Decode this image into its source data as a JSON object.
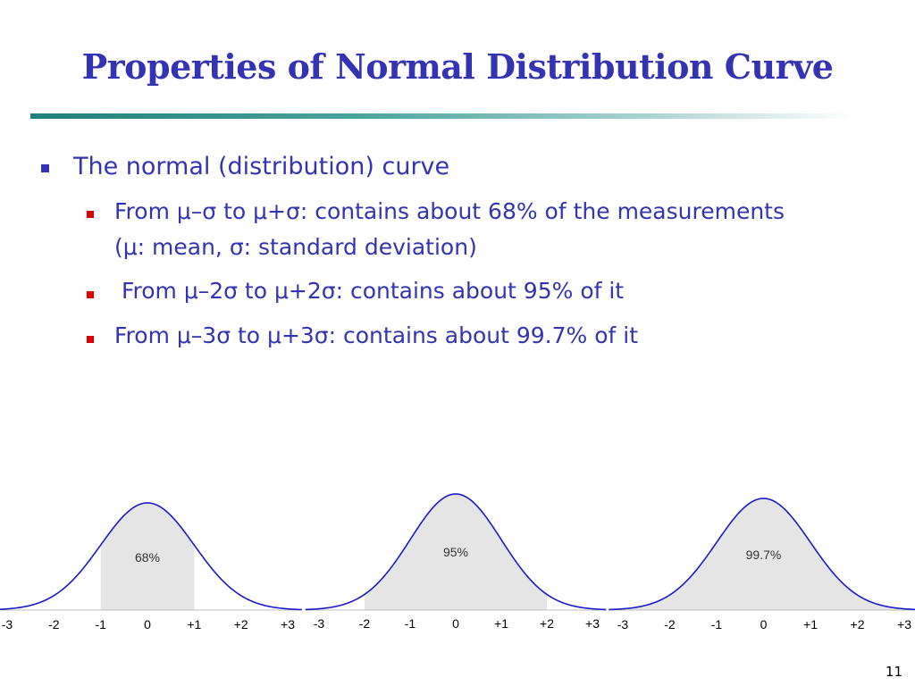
{
  "slide": {
    "title": "Properties of Normal Distribution Curve",
    "page_number": "11"
  },
  "bullets": {
    "main": "The normal (distribution) curve",
    "sub1_line1": "From μ–σ to μ+σ: contains about 68% of the measurements",
    "sub1_line2": "(μ: mean, σ: standard deviation)",
    "sub2": " From μ–2σ to μ+2σ: contains about 95% of it",
    "sub3": "From μ–3σ to μ+3σ: contains about 99.7% of it"
  },
  "colors": {
    "title": "#3333b3",
    "bullet_text": "#3333b3",
    "sub_bullet_marker": "#e00000",
    "curve": "#1a1acc",
    "shade": "#e5e5e5"
  },
  "chart_data": [
    {
      "type": "area",
      "x_ticks": [
        "-3",
        "-2",
        "-1",
        "0",
        "+1",
        "+2",
        "+3"
      ],
      "shaded_range": [
        -1,
        1
      ],
      "label": "68%",
      "value": 68
    },
    {
      "type": "area",
      "x_ticks": [
        "-3",
        "-2",
        "-1",
        "0",
        "+1",
        "+2",
        "+3"
      ],
      "shaded_range": [
        -2,
        2
      ],
      "label": "95%",
      "value": 95
    },
    {
      "type": "area",
      "x_ticks": [
        "-3",
        "-2",
        "-1",
        "0",
        "+1",
        "+2",
        "+3"
      ],
      "shaded_range": [
        -3,
        3
      ],
      "label": "99.7%",
      "value": 99.7
    }
  ]
}
